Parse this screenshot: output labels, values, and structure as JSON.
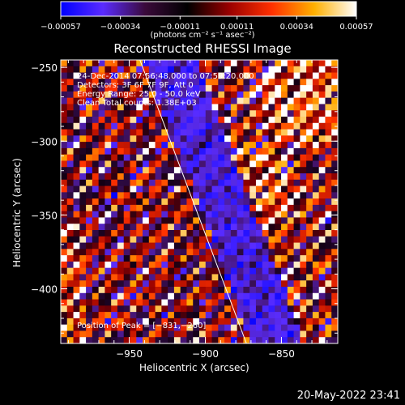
{
  "chart_data": {
    "type": "heatmap",
    "title": "Reconstructed RHESSI Image",
    "xlabel": "Heliocentric X (arcsec)",
    "ylabel": "Heliocentric Y (arcsec)",
    "xlim": [
      -995,
      -813
    ],
    "ylim": [
      -437,
      -245
    ],
    "x_ticks": [
      -950,
      -900,
      -850
    ],
    "x_tick_labels": [
      "−950",
      "−900",
      "−850"
    ],
    "y_ticks": [
      -250,
      -300,
      -350,
      -400
    ],
    "y_tick_labels": [
      "−250",
      "−300",
      "−350",
      "−400"
    ],
    "colorbar": {
      "range": [
        -0.00057,
        0.00057
      ],
      "ticks": [
        -0.00057,
        -0.00034,
        -0.00011,
        0.00011,
        0.00034,
        0.00057
      ],
      "tick_labels": [
        "−0.00057",
        "−0.00034",
        "−0.00011",
        "0.00011",
        "0.00034",
        "0.00057"
      ],
      "unit_label": "(photons cm⁻² s⁻¹ asec⁻²)",
      "colors": [
        "#0000ff",
        "#5a2bff",
        "#3a0a3a",
        "#000000",
        "#9a0000",
        "#ff3000",
        "#ffb000",
        "#ffffff"
      ]
    },
    "annotations": [
      "24-Dec-2014 07:56:48.000 to 07:59:20.000",
      "Detectors: 3F 6F 7F 9F, Att 0",
      "Energy Range: 25.0 - 50.0 keV",
      "Clean     Total counts: 1.38E+03"
    ],
    "peak_label": "Position of Peak = [−831,−260]",
    "limb_line": {
      "from": [
        -943,
        -245
      ],
      "to": [
        -873,
        -437
      ],
      "color": "#ffffff"
    }
  },
  "footer": {
    "timestamp": "20-May-2022 23:41"
  }
}
